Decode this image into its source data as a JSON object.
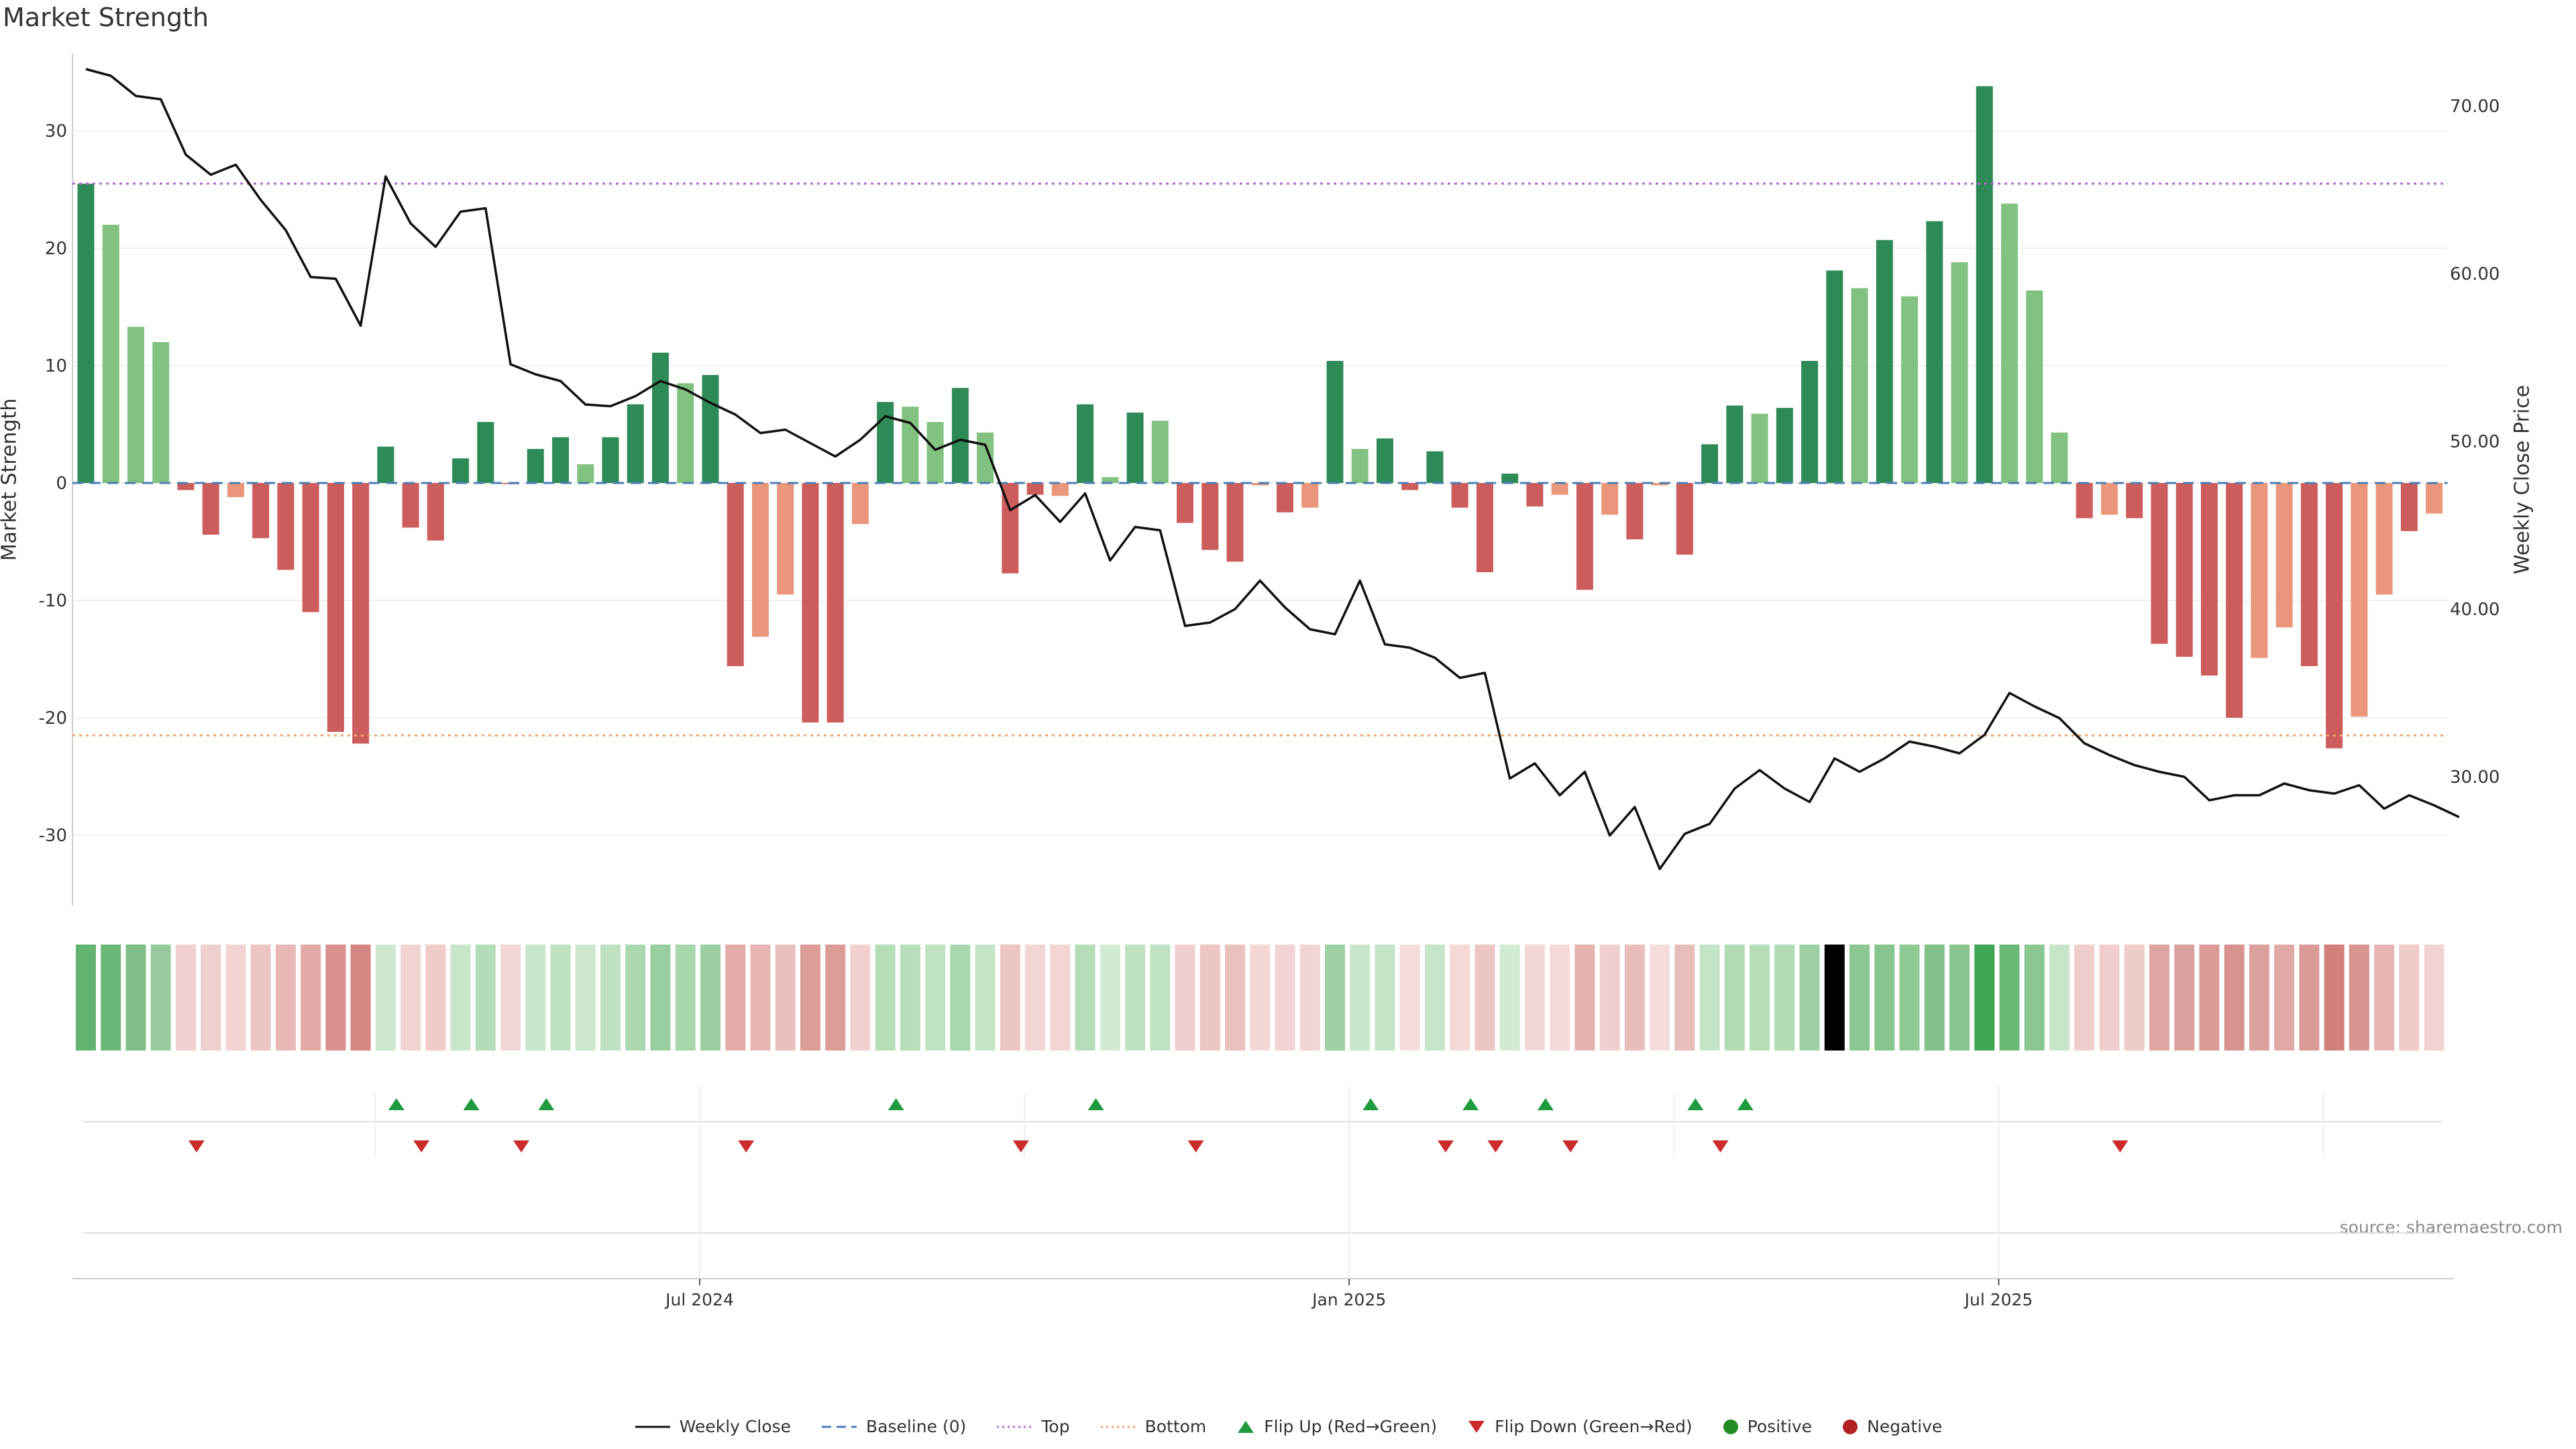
{
  "chart_data": {
    "type": "bar",
    "title": "Market Strength",
    "ylabel": "Market Strength",
    "y2label": "Weekly Close Price",
    "source": "source: sharemaestro.com",
    "ylim": [
      -36,
      37
    ],
    "y2lim": [
      22,
      74
    ],
    "yticks": [
      30,
      20,
      10,
      0,
      -10,
      -20,
      -30
    ],
    "y2ticks": [
      "70.00",
      "60.00",
      "50.00",
      "40.00",
      "30.00"
    ],
    "y2tick_values": [
      70,
      60,
      50,
      40,
      30
    ],
    "xticks": [
      {
        "label": "Jul 2024",
        "week": 25
      },
      {
        "label": "Jan 2025",
        "week": 51
      },
      {
        "label": "Jul 2025",
        "week": 77
      }
    ],
    "top_line": 25.5,
    "bottom_line": -21.5,
    "baseline": 0,
    "strength": [
      25.5,
      22,
      13.3,
      12,
      -0.6,
      -4.4,
      -1.2,
      -4.7,
      -7.4,
      -11,
      -21.2,
      -22.2,
      3.1,
      -3.8,
      -4.9,
      2.1,
      5.2,
      -0.1,
      2.9,
      3.9,
      1.6,
      3.9,
      6.7,
      11.1,
      8.5,
      9.2,
      -15.6,
      -13.1,
      -9.5,
      -20.4,
      -20.4,
      -3.5,
      6.9,
      6.5,
      5.2,
      8.1,
      4.3,
      -7.7,
      -1,
      -1.1,
      6.7,
      0.5,
      6,
      5.3,
      -3.4,
      -5.7,
      -6.7,
      -0.2,
      -2.5,
      -2.1,
      10.4,
      2.9,
      3.8,
      -0.6,
      2.7,
      -2.1,
      -7.6,
      0.8,
      -2,
      -1,
      -9.1,
      -2.7,
      -4.8,
      -0.2,
      -6.1,
      3.3,
      6.6,
      5.9,
      6.4,
      10.4,
      18.1,
      16.6,
      20.7,
      15.9,
      22.3,
      18.8,
      33.8,
      23.8,
      16.4,
      4.3,
      -3,
      -2.7,
      -3,
      -13.7,
      -14.8,
      -16.4,
      -20,
      -14.9,
      -12.3,
      -15.6,
      -22.6,
      -19.9,
      -9.5,
      -4.1,
      -2.6
    ],
    "shade": [
      "d",
      "l",
      "l",
      "l",
      "d",
      "d",
      "l",
      "d",
      "d",
      "d",
      "d",
      "d",
      "d",
      "d",
      "d",
      "d",
      "d",
      "d",
      "d",
      "d",
      "l",
      "d",
      "d",
      "d",
      "l",
      "d",
      "d",
      "l",
      "l",
      "d",
      "d",
      "l",
      "d",
      "l",
      "l",
      "d",
      "l",
      "d",
      "d",
      "l",
      "d",
      "l",
      "d",
      "l",
      "d",
      "d",
      "d",
      "l",
      "d",
      "l",
      "d",
      "l",
      "d",
      "d",
      "d",
      "d",
      "d",
      "d",
      "d",
      "l",
      "d",
      "l",
      "d",
      "l",
      "d",
      "d",
      "d",
      "l",
      "d",
      "d",
      "d",
      "l",
      "d",
      "l",
      "d",
      "l",
      "d",
      "l",
      "l",
      "l",
      "d",
      "l",
      "d",
      "d",
      "d",
      "d",
      "d",
      "l",
      "l",
      "d",
      "d",
      "l",
      "l",
      "d",
      "l"
    ],
    "close": [
      72.2,
      71.8,
      70.6,
      70.4,
      67.1,
      65.9,
      66.5,
      64.4,
      62.6,
      59.8,
      59.7,
      56.9,
      65.8,
      63.0,
      61.6,
      63.7,
      63.9,
      54.6,
      54.0,
      53.6,
      52.2,
      52.1,
      52.7,
      53.6,
      53.1,
      52.3,
      51.6,
      50.5,
      50.7,
      49.9,
      49.1,
      50.1,
      51.5,
      51.1,
      49.5,
      50.1,
      49.8,
      45.9,
      46.8,
      45.2,
      46.9,
      42.9,
      44.9,
      44.7,
      39.0,
      39.2,
      40.0,
      41.7,
      40.1,
      38.8,
      38.5,
      41.7,
      37.9,
      37.7,
      37.1,
      35.9,
      36.2,
      29.9,
      30.8,
      28.9,
      30.3,
      26.5,
      28.2,
      24.5,
      26.6,
      27.2,
      29.3,
      30.4,
      29.3,
      28.5,
      31.1,
      30.3,
      31.1,
      32.1,
      31.8,
      31.4,
      32.5,
      35.0,
      34.2,
      33.5,
      32.0,
      31.3,
      30.7,
      30.3,
      30.0,
      28.6,
      28.9,
      28.9,
      29.6,
      29.2,
      29.0,
      29.5,
      28.1,
      28.9,
      28.3,
      27.6
    ],
    "strip_colors": [
      "#62b36f",
      "#6bb777",
      "#7dbf86",
      "#97cb9d",
      "#f0d1d0",
      "#eed0cf",
      "#f1d4d3",
      "#ebc5c3",
      "#e7b8b6",
      "#e3a9a7",
      "#d8918e",
      "#d48783",
      "#cde8cf",
      "#f1d3d2",
      "#efcbca",
      "#c9e6cb",
      "#b3dcb8",
      "#f2d6d5",
      "#c7e6cb",
      "#bde1c1",
      "#cde8cf",
      "#bde1c1",
      "#acd8b1",
      "#99ceA0",
      "#a7d6ad",
      "#9bcfa2",
      "#e2aba8",
      "#e7b5b3",
      "#eac0be",
      "#dc9d99",
      "#dc9d99",
      "#f1d1d0",
      "#b4ddb8",
      "#b6deba",
      "#bfe2c3",
      "#a9d7af",
      "#c5e4c8",
      "#ebc6c4",
      "#f2d6d5",
      "#f2d5d4",
      "#b5ddba",
      "#d2ead4",
      "#bde1c1",
      "#c0e2c4",
      "#f0cecd",
      "#ecc6c4",
      "#e9c1bf",
      "#f2d7d6",
      "#f1d4d3",
      "#f1d5d4",
      "#9ed1a5",
      "#c9e6cc",
      "#c4e4c7",
      "#f4dcdb",
      "#c7e5ca",
      "#f3d9d8",
      "#ebc6c4",
      "#d2ead4",
      "#f3d8d7",
      "#f4dbda",
      "#e5b4b1",
      "#efcfce",
      "#e8bcba",
      "#f4dddc",
      "#e8bebc",
      "#c4e4c7",
      "#b0dbb5",
      "#b4ddb8",
      "#b0dbb5",
      "#9fd1a6",
      "#8ac7920",
      "#8ac792",
      "#86c58e",
      "#8ec994",
      "#7fc188",
      "#87c58f",
      "#3fa552",
      "#6bb877",
      "#8ac791",
      "#c8e5ca",
      "#efcdcc",
      "#efcecd",
      "#eeccca",
      "#dea5a2",
      "#dca19e",
      "#db9c99",
      "#d69390",
      "#dca19e",
      "#e0a9a6",
      "#da9b98",
      "#d17f7b",
      "#d89490",
      "#e6b5b3",
      "#efcbca",
      "#f1d3d2"
    ],
    "flip_up_weeks": [
      12,
      15,
      18,
      32,
      40,
      51,
      55,
      58,
      64,
      66
    ],
    "flip_down_weeks": [
      4,
      13,
      17,
      26,
      37,
      44,
      54,
      56,
      59,
      65,
      81
    ],
    "legend": [
      "Weekly Close",
      "Baseline (0)",
      "Top",
      "Bottom",
      "Flip Up (Red→Green)",
      "Flip Down (Green→Red)",
      "Positive",
      "Negative"
    ],
    "colors": {
      "pos_dark": "#2e8b57",
      "pos_light": "#82c280",
      "neg_dark": "#cd5c5c",
      "neg_light": "#e9967a",
      "close": "#111111",
      "baseline": "#4a7fb5",
      "top": "#b366cc",
      "bottom": "#f0a36c",
      "flip_up": "#1f9a3f",
      "flip_down": "#cc2b2b",
      "positive_dot": "#228b22",
      "negative_dot": "#b22222"
    }
  }
}
